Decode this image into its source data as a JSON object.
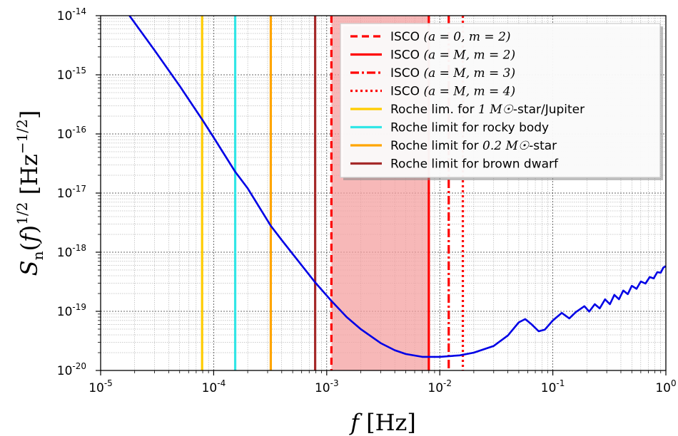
{
  "chart_data": {
    "type": "line",
    "xlabel": "f [Hz]",
    "ylabel": "S_n(f)^{1/2} [Hz^{-1/2}]",
    "x_scale": "log",
    "y_scale": "log",
    "xlim": [
      1e-05,
      1.0
    ],
    "ylim": [
      1e-20,
      1e-14
    ],
    "grid": true,
    "legend_position": "top-right",
    "x_ticks": [
      {
        "base": "10",
        "exp": "-5",
        "value": 1e-05
      },
      {
        "base": "10",
        "exp": "-4",
        "value": 0.0001
      },
      {
        "base": "10",
        "exp": "-3",
        "value": 0.001
      },
      {
        "base": "10",
        "exp": "-2",
        "value": 0.01
      },
      {
        "base": "10",
        "exp": "-1",
        "value": 0.1
      },
      {
        "base": "10",
        "exp": "0",
        "value": 1.0
      }
    ],
    "y_ticks": [
      {
        "base": "10",
        "exp": "-20",
        "value": 1e-20
      },
      {
        "base": "10",
        "exp": "-19",
        "value": 1e-19
      },
      {
        "base": "10",
        "exp": "-18",
        "value": 1e-18
      },
      {
        "base": "10",
        "exp": "-17",
        "value": 1e-17
      },
      {
        "base": "10",
        "exp": "-16",
        "value": 1e-16
      },
      {
        "base": "10",
        "exp": "-15",
        "value": 1e-15
      },
      {
        "base": "10",
        "exp": "-14",
        "value": 1e-14
      }
    ],
    "noise_curve": {
      "color": "#0000e6",
      "points": [
        [
          1.8e-05,
          1e-14
        ],
        [
          3e-05,
          2.6e-15
        ],
        [
          5e-05,
          6.5e-16
        ],
        [
          8e-05,
          1.7e-16
        ],
        [
          0.0001,
          8.7e-17
        ],
        [
          0.000155,
          2.3e-17
        ],
        [
          0.0002,
          1.2e-17
        ],
        [
          0.00032,
          2.8e-18
        ],
        [
          0.0004,
          1.6e-18
        ],
        [
          0.0006,
          6e-19
        ],
        [
          0.0008,
          3e-19
        ],
        [
          0.0011,
          1.5e-19
        ],
        [
          0.0015,
          8e-20
        ],
        [
          0.002,
          5e-20
        ],
        [
          0.003,
          2.9e-20
        ],
        [
          0.004,
          2.2e-20
        ],
        [
          0.005,
          1.9e-20
        ],
        [
          0.007,
          1.7e-20
        ],
        [
          0.01,
          1.7e-20
        ],
        [
          0.015,
          1.8e-20
        ],
        [
          0.02,
          2e-20
        ],
        [
          0.03,
          2.6e-20
        ],
        [
          0.04,
          3.9e-20
        ],
        [
          0.05,
          6.5e-20
        ],
        [
          0.057,
          7.4e-20
        ],
        [
          0.065,
          6e-20
        ],
        [
          0.075,
          4.6e-20
        ],
        [
          0.085,
          4.9e-20
        ],
        [
          0.1,
          7e-20
        ],
        [
          0.12,
          9.4e-20
        ],
        [
          0.14,
          7.6e-20
        ],
        [
          0.16,
          9.7e-20
        ],
        [
          0.19,
          1.22e-19
        ],
        [
          0.21,
          9.9e-20
        ],
        [
          0.235,
          1.32e-19
        ],
        [
          0.26,
          1.12e-19
        ],
        [
          0.29,
          1.6e-19
        ],
        [
          0.32,
          1.32e-19
        ],
        [
          0.35,
          1.9e-19
        ],
        [
          0.385,
          1.6e-19
        ],
        [
          0.42,
          2.25e-19
        ],
        [
          0.46,
          1.95e-19
        ],
        [
          0.5,
          2.7e-19
        ],
        [
          0.55,
          2.4e-19
        ],
        [
          0.6,
          3.2e-19
        ],
        [
          0.66,
          2.95e-19
        ],
        [
          0.72,
          3.8e-19
        ],
        [
          0.78,
          3.6e-19
        ],
        [
          0.84,
          4.6e-19
        ],
        [
          0.9,
          4.5e-19
        ],
        [
          0.95,
          5.5e-19
        ],
        [
          1.0,
          5.8e-19
        ]
      ]
    },
    "shaded_region": {
      "x": [
        0.0011,
        0.008
      ],
      "color": "#f4a0a0"
    },
    "vertical_lines": [
      {
        "x": 7.9e-05,
        "color": "#ffcc00",
        "style": "solid"
      },
      {
        "x": 0.000155,
        "color": "#33e6e6",
        "style": "solid"
      },
      {
        "x": 0.00032,
        "color": "#ffa500",
        "style": "solid"
      },
      {
        "x": 0.00079,
        "color": "#a52a2a",
        "style": "solid"
      },
      {
        "x": 0.0011,
        "color": "#ff0000",
        "style": "dashed"
      },
      {
        "x": 0.008,
        "color": "#ff0000",
        "style": "solid"
      },
      {
        "x": 0.012,
        "color": "#ff0000",
        "style": "dashdot"
      },
      {
        "x": 0.016,
        "color": "#ff0000",
        "style": "dotted"
      }
    ],
    "legend": [
      {
        "label": "ISCO",
        "math": "(a = 0, m = 2)",
        "suffix": "",
        "color": "#ff0000",
        "style": "dashed"
      },
      {
        "label": "ISCO",
        "math": "(a = M, m = 2)",
        "suffix": "",
        "color": "#ff0000",
        "style": "solid"
      },
      {
        "label": "ISCO",
        "math": "(a = M, m = 3)",
        "suffix": "",
        "color": "#ff0000",
        "style": "dashdot"
      },
      {
        "label": "ISCO",
        "math": "(a = M, m = 4)",
        "suffix": "",
        "color": "#ff0000",
        "style": "dotted"
      },
      {
        "label": "Roche lim. for",
        "math": "1 M☉",
        "suffix": "-star/Jupiter",
        "color": "#ffcc00",
        "style": "solid"
      },
      {
        "label": "Roche limit for rocky body",
        "math": "",
        "suffix": "",
        "color": "#33e6e6",
        "style": "solid"
      },
      {
        "label": "Roche limit for",
        "math": "0.2 M☉",
        "suffix": "-star",
        "color": "#ffa500",
        "style": "solid"
      },
      {
        "label": "Roche limit for brown dwarf",
        "math": "",
        "suffix": "",
        "color": "#a52a2a",
        "style": "solid"
      }
    ]
  }
}
